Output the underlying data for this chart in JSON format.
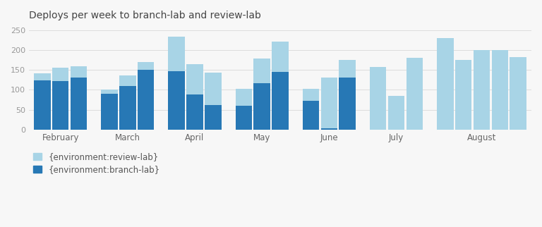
{
  "title": "Deploys per week to branch-lab and review-lab",
  "review_lab": [
    141,
    155,
    160,
    100,
    136,
    170,
    233,
    165,
    143,
    103,
    178,
    221,
    103,
    131,
    175,
    157,
    85,
    181,
    230,
    175,
    200,
    200,
    183
  ],
  "branch_lab": [
    123,
    122,
    130,
    90,
    110,
    150,
    146,
    89,
    62,
    60,
    117,
    145,
    72,
    3,
    130,
    0,
    0,
    0,
    0,
    0,
    0,
    0,
    0
  ],
  "groups": [
    {
      "label": "February",
      "indices": [
        0,
        1,
        2
      ]
    },
    {
      "label": "March",
      "indices": [
        3,
        4,
        5
      ]
    },
    {
      "label": "April",
      "indices": [
        6,
        7,
        8
      ]
    },
    {
      "label": "May",
      "indices": [
        9,
        10,
        11
      ]
    },
    {
      "label": "June",
      "indices": [
        12,
        13,
        14
      ]
    },
    {
      "label": "July",
      "indices": [
        15,
        16,
        17
      ]
    },
    {
      "label": "August",
      "indices": [
        18,
        19,
        20,
        21,
        22
      ]
    }
  ],
  "color_review": "#a8d4e6",
  "color_branch": "#2778b5",
  "legend_review": "{environment:review-lab}",
  "legend_branch": "{environment:branch-lab}",
  "ylim": [
    0,
    260
  ],
  "yticks": [
    0,
    50,
    100,
    150,
    200,
    250
  ],
  "background": "#f7f7f7"
}
